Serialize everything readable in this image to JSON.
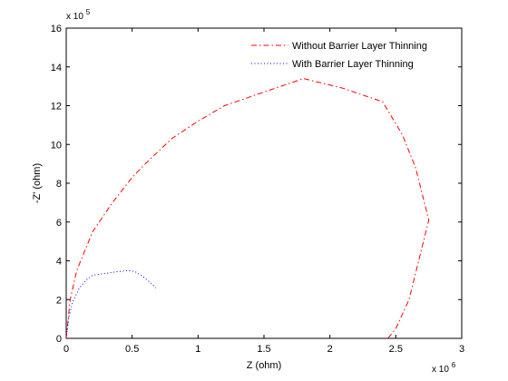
{
  "chart_data": {
    "type": "line",
    "xlabel": "Z (ohm)",
    "ylabel": "-Z' (ohm)",
    "x_multiplier": "x 10",
    "x_exponent": "6",
    "y_multiplier": "x 10",
    "y_exponent": "5",
    "xlim": [
      0,
      3
    ],
    "ylim": [
      0,
      16
    ],
    "x_ticks": [
      0,
      0.5,
      1,
      1.5,
      2,
      2.5,
      3
    ],
    "y_ticks": [
      0,
      2,
      4,
      6,
      8,
      10,
      12,
      14,
      16
    ],
    "grid": false,
    "legend_position": "top-right",
    "series": [
      {
        "name": "Without Barrier Layer Thinning",
        "color": "#ff0000",
        "style": "dash-dot",
        "x": [
          0.0,
          0.03,
          0.08,
          0.2,
          0.35,
          0.5,
          0.6,
          0.8,
          1.0,
          1.2,
          1.5,
          1.8,
          2.1,
          2.4,
          2.55,
          2.65,
          2.75,
          2.6,
          2.5,
          2.44
        ],
        "y": [
          0.0,
          2.0,
          3.5,
          5.5,
          7.0,
          8.3,
          9.0,
          10.3,
          11.2,
          12.0,
          12.7,
          13.4,
          12.9,
          12.2,
          10.5,
          8.8,
          6.1,
          2.0,
          0.5,
          0.0
        ]
      },
      {
        "name": "With Barrier Layer Thinning",
        "color": "#0000ff",
        "style": "dotted",
        "x": [
          0.0,
          0.02,
          0.05,
          0.1,
          0.15,
          0.2,
          0.3,
          0.4,
          0.47,
          0.52,
          0.58,
          0.65,
          0.68
        ],
        "y": [
          0.0,
          1.1,
          1.9,
          2.6,
          3.0,
          3.25,
          3.35,
          3.45,
          3.5,
          3.45,
          3.2,
          2.8,
          2.6
        ]
      }
    ]
  }
}
